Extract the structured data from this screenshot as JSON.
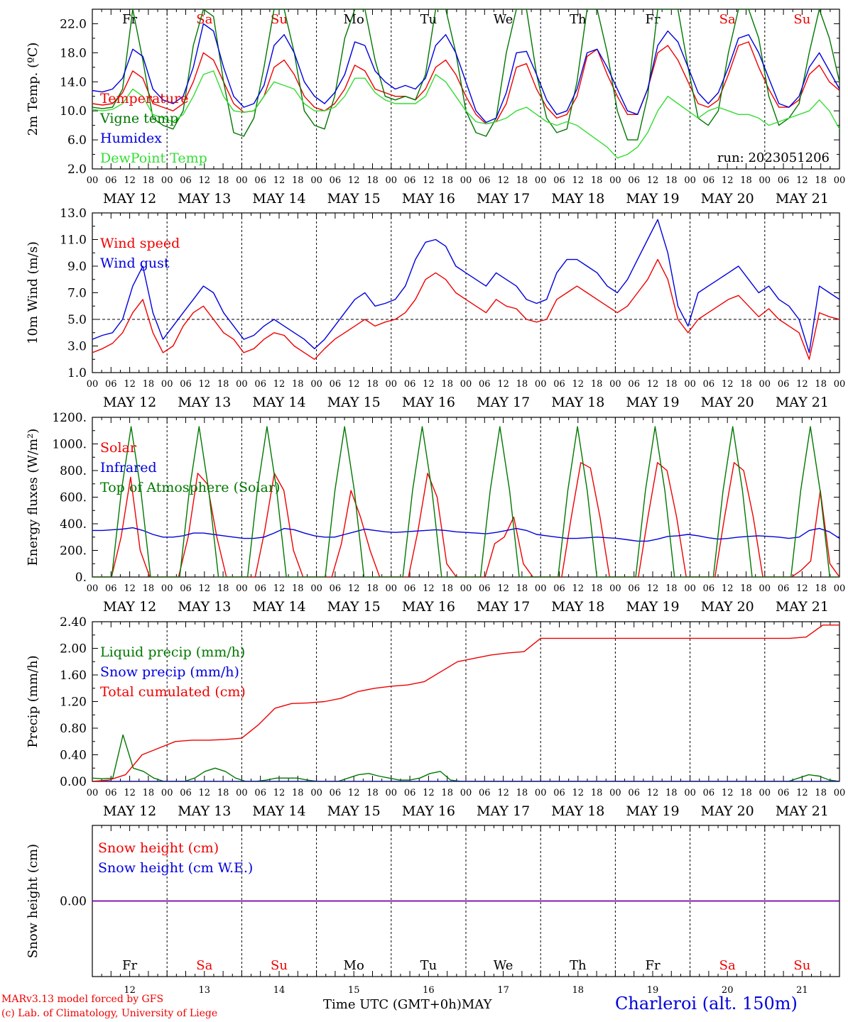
{
  "colors": {
    "red": "#ee0000",
    "green": "#007700",
    "blue": "#0000dd",
    "lightgreen": "#33dd33",
    "purple": "#7700aa",
    "weekend": "#ee0000"
  },
  "day_names": [
    "Fr",
    "Sa",
    "Su",
    "Mo",
    "Tu",
    "We",
    "Th",
    "Fr",
    "Sa",
    "Su"
  ],
  "day_weekend": [
    false,
    true,
    true,
    false,
    false,
    false,
    false,
    false,
    true,
    true
  ],
  "date_labels": [
    "MAY 12",
    "MAY 13",
    "MAY 14",
    "MAY 15",
    "MAY 16",
    "MAY 17",
    "MAY 18",
    "MAY 19",
    "MAY 20",
    "MAY 21"
  ],
  "day_numbers": [
    "12",
    "13",
    "14",
    "15",
    "16",
    "17",
    "18",
    "19",
    "20",
    "21"
  ],
  "hour_ticks": [
    "00",
    "06",
    "12",
    "18"
  ],
  "hour_end": "00",
  "x_axis_title": "Time UTC (GMT+0h)",
  "x_axis_month": "MAY",
  "credits": [
    "MARv3.13 model forced by GFS",
    "(c) Lab. of Climatology, University of Liege"
  ],
  "station": "Charleroi (alt. 150m)",
  "chart_data": [
    {
      "type": "line",
      "ylabel": "2m Temp. (ºC)",
      "ylim": [
        2.0,
        24.0
      ],
      "yticks": [
        "22.0",
        "18.0",
        "14.0",
        "10.0",
        "6.0",
        "2.0"
      ],
      "ytick_values": [
        22,
        18,
        14,
        10,
        6,
        2
      ],
      "annotation": "run: 2023051206",
      "show_day_names": true,
      "series": [
        {
          "name": "Temperature",
          "color": "red",
          "values": [
            11,
            10.8,
            11,
            12.5,
            15.5,
            14.5,
            11,
            10.5,
            10,
            11,
            14,
            18,
            17,
            14,
            11,
            9.8,
            10,
            12,
            16,
            17,
            15,
            12,
            10.5,
            10,
            11,
            13,
            16.3,
            15.5,
            13,
            12.5,
            12,
            12,
            11.5,
            13,
            16,
            17,
            15,
            12,
            9.5,
            8.2,
            8.5,
            11,
            16,
            16.5,
            13,
            10.5,
            9,
            9.5,
            12,
            17.5,
            18.5,
            15,
            12,
            9.5,
            9.5,
            13,
            18,
            19,
            17,
            14,
            11,
            10.5,
            11.5,
            15,
            19,
            19.5,
            16,
            13,
            10.5,
            10.5,
            11.5,
            15,
            16.3,
            14,
            12.8
          ]
        },
        {
          "name": "Vigne temp",
          "color": "green",
          "values": [
            10.5,
            10.3,
            10.5,
            13,
            24,
            17,
            9,
            8,
            7.5,
            10,
            19,
            24,
            23,
            14,
            7,
            6.5,
            9,
            16,
            24,
            24,
            18,
            10,
            8,
            7.5,
            12,
            20,
            24,
            24,
            17,
            12,
            11.5,
            12,
            11.5,
            15,
            24,
            24,
            18,
            10,
            7,
            6.5,
            9,
            18,
            24,
            24,
            15,
            9,
            7,
            7.5,
            14,
            24,
            24,
            18,
            10,
            6,
            6,
            12,
            24,
            24,
            24,
            16,
            9,
            8,
            10,
            18,
            24,
            24,
            20,
            12,
            8,
            9,
            11,
            18,
            24,
            20,
            14
          ]
        },
        {
          "name": "Humidex",
          "color": "blue",
          "values": [
            12.8,
            12.6,
            13,
            14.5,
            18.5,
            17.5,
            13,
            11.5,
            11,
            12,
            16,
            22,
            21,
            16,
            12,
            10.5,
            11,
            13.5,
            19,
            20.5,
            18,
            14,
            12,
            11,
            12.5,
            15,
            19.5,
            19,
            15.5,
            14,
            13,
            13.5,
            13,
            14.5,
            19,
            20.5,
            18,
            14,
            10,
            8.4,
            9,
            12.5,
            18,
            18.2,
            15,
            11.5,
            9.5,
            10,
            13,
            18,
            18.5,
            16,
            13,
            10,
            9.5,
            13,
            19,
            21,
            19.5,
            16,
            12.5,
            11,
            12.5,
            16,
            20,
            20.5,
            18,
            14.5,
            11,
            10.5,
            12,
            16,
            18,
            15.5,
            13
          ]
        },
        {
          "name": "DewPoint Temp",
          "color": "lightgreen",
          "values": [
            10.2,
            10,
            10.2,
            11,
            13,
            12,
            9.5,
            9,
            8.5,
            9.5,
            12,
            15,
            15.5,
            12,
            10,
            9.8,
            10,
            12,
            14,
            13.5,
            13,
            11,
            10,
            10,
            10.5,
            12,
            14.5,
            14.5,
            12.5,
            11.5,
            11,
            11,
            11,
            12,
            15,
            14,
            12,
            10,
            8.5,
            8.2,
            8.5,
            9,
            10,
            10.5,
            9.5,
            8.5,
            8,
            8.5,
            8,
            7,
            6,
            5,
            3.5,
            4,
            5,
            7,
            10,
            12,
            11,
            10,
            9,
            10,
            10.5,
            10,
            9.5,
            9.5,
            9,
            8,
            8.5,
            9,
            9.5,
            10,
            11.5,
            10,
            7.5
          ]
        }
      ]
    },
    {
      "type": "line",
      "ylabel": "10m Wind (m/s)",
      "ylim": [
        1.0,
        13.0
      ],
      "yticks": [
        "13.0",
        "11.0",
        "9.0",
        "7.0",
        "5.0",
        "3.0",
        "1.0"
      ],
      "ytick_values": [
        13,
        11,
        9,
        7,
        5,
        3,
        1
      ],
      "reference_line": 5.0,
      "show_day_names": false,
      "series": [
        {
          "name": "Wind speed",
          "color": "red",
          "values": [
            2.5,
            2.8,
            3.2,
            4,
            5.5,
            6.5,
            4,
            2.5,
            3,
            4.5,
            5.5,
            6,
            5,
            4,
            3.5,
            2.5,
            2.8,
            3.5,
            4,
            3.8,
            3,
            2.5,
            2,
            2.8,
            3.5,
            4,
            4.5,
            5,
            4.5,
            4.8,
            5,
            5.5,
            6.5,
            8,
            8.5,
            8,
            7,
            6.5,
            6,
            5.5,
            6.5,
            6,
            5.8,
            5,
            4.8,
            5,
            6.5,
            7,
            7.5,
            7,
            6.5,
            6,
            5.5,
            6,
            7,
            8,
            9.5,
            8,
            5,
            4,
            5,
            5.5,
            6,
            6.5,
            6.8,
            6,
            5.2,
            5.8,
            5,
            4.5,
            4,
            2,
            5.5,
            5.2,
            5
          ]
        },
        {
          "name": "Wind gust",
          "color": "blue",
          "values": [
            3.5,
            3.8,
            4,
            5,
            7.5,
            9,
            5.5,
            3.5,
            4.5,
            5.5,
            6.5,
            7.5,
            7,
            5.5,
            4.5,
            3.5,
            3.8,
            4.5,
            5,
            4.5,
            4,
            3.5,
            2.8,
            3.5,
            4.5,
            5.5,
            6.5,
            7,
            6,
            6.2,
            6.5,
            7.5,
            9.5,
            10.8,
            11,
            10.5,
            9,
            8.5,
            8,
            7.5,
            8.5,
            8,
            7.5,
            6.5,
            6.2,
            6.5,
            8.5,
            9.5,
            9.5,
            9,
            8.5,
            7.5,
            7,
            8,
            9.5,
            11,
            12.5,
            10,
            6,
            4.5,
            7,
            7.5,
            8,
            8.5,
            9,
            8,
            7,
            7.5,
            6.5,
            6,
            5,
            2.5,
            7.5,
            7,
            6.5
          ]
        }
      ]
    },
    {
      "type": "line",
      "ylabel": "Energy fluxes (W/m²)",
      "ylim": [
        0,
        1200
      ],
      "yticks": [
        "1200.",
        "1000.",
        "800.",
        "600.",
        "400.",
        "200.",
        "0."
      ],
      "ytick_values": [
        1200,
        1000,
        800,
        600,
        400,
        200,
        0
      ],
      "show_day_names": false,
      "series": [
        {
          "name": "Solar",
          "color": "red",
          "values": [
            0,
            0,
            0,
            300,
            750,
            200,
            0,
            0,
            0,
            0,
            300,
            780,
            700,
            300,
            0,
            0,
            0,
            0,
            350,
            780,
            650,
            200,
            0,
            0,
            0,
            0,
            250,
            650,
            450,
            200,
            0,
            0,
            0,
            0,
            350,
            780,
            600,
            100,
            0,
            0,
            0,
            0,
            250,
            300,
            450,
            100,
            0,
            0,
            0,
            0,
            450,
            860,
            820,
            450,
            0,
            0,
            0,
            0,
            450,
            860,
            800,
            450,
            0,
            0,
            0,
            0,
            450,
            860,
            800,
            450,
            0,
            0,
            0,
            0,
            50,
            120,
            650,
            100,
            0
          ]
        },
        {
          "name": "Infrared",
          "color": "blue",
          "values": [
            350,
            350,
            355,
            360,
            370,
            350,
            320,
            300,
            300,
            310,
            330,
            330,
            320,
            310,
            300,
            290,
            290,
            300,
            330,
            365,
            355,
            330,
            310,
            300,
            300,
            320,
            340,
            360,
            350,
            340,
            335,
            340,
            345,
            350,
            355,
            350,
            340,
            335,
            330,
            325,
            335,
            350,
            365,
            350,
            320,
            310,
            300,
            290,
            290,
            295,
            300,
            295,
            290,
            280,
            270,
            270,
            285,
            305,
            310,
            320,
            310,
            295,
            285,
            290,
            300,
            305,
            310,
            305,
            300,
            290,
            300,
            350,
            365,
            340,
            290
          ]
        },
        {
          "name": "Top of Atmosphere (Solar)",
          "color": "green",
          "values": [
            0,
            0,
            0,
            650,
            1130,
            650,
            0,
            0,
            0,
            0,
            650,
            1130,
            650,
            0,
            0,
            0,
            0,
            650,
            1130,
            650,
            0,
            0,
            0,
            0,
            0,
            650,
            1130,
            650,
            0,
            0,
            0,
            0,
            0,
            650,
            1130,
            650,
            0,
            0,
            0,
            0,
            0,
            650,
            1130,
            650,
            0,
            0,
            0,
            0,
            0,
            650,
            1130,
            650,
            0,
            0,
            0,
            0,
            0,
            650,
            1130,
            650,
            0,
            0,
            0,
            0,
            0,
            650,
            1130,
            650,
            0,
            0,
            0,
            0,
            0,
            650,
            1130,
            650,
            0,
            0
          ]
        }
      ]
    },
    {
      "type": "line",
      "ylabel": "Precip (mm/h)",
      "ylim": [
        0,
        2.4
      ],
      "yticks": [
        "2.40",
        "2.00",
        "1.60",
        "1.20",
        "0.80",
        "0.40",
        "0.00"
      ],
      "ytick_values": [
        2.4,
        2.0,
        1.6,
        1.2,
        0.8,
        0.4,
        0.0
      ],
      "show_day_names": false,
      "series": [
        {
          "name": "Liquid precip (mm/h)",
          "color": "green",
          "values": [
            0.05,
            0.04,
            0.05,
            0.7,
            0.2,
            0.15,
            0.05,
            0,
            0,
            0,
            0.05,
            0.15,
            0.2,
            0.15,
            0.05,
            0,
            0,
            0.02,
            0.05,
            0.05,
            0.05,
            0.02,
            0,
            0,
            0,
            0.05,
            0.1,
            0.12,
            0.08,
            0.05,
            0.02,
            0.02,
            0.05,
            0.12,
            0.15,
            0.02,
            0,
            0,
            0,
            0,
            0,
            0,
            0,
            0,
            0,
            0,
            0,
            0,
            0,
            0,
            0,
            0,
            0,
            0,
            0,
            0,
            0,
            0,
            0,
            0,
            0,
            0,
            0,
            0,
            0,
            0,
            0,
            0,
            0,
            0.05,
            0.1,
            0.08,
            0.02,
            0
          ]
        },
        {
          "name": "Snow precip (mm/h)",
          "color": "blue",
          "values": [
            0,
            0,
            0,
            0,
            0,
            0,
            0,
            0,
            0,
            0,
            0,
            0,
            0,
            0,
            0,
            0,
            0,
            0,
            0,
            0,
            0,
            0,
            0,
            0,
            0,
            0,
            0,
            0,
            0,
            0,
            0,
            0,
            0,
            0,
            0,
            0,
            0,
            0,
            0,
            0,
            0,
            0,
            0,
            0,
            0,
            0,
            0,
            0,
            0,
            0,
            0,
            0,
            0,
            0,
            0,
            0,
            0,
            0,
            0,
            0,
            0,
            0,
            0,
            0,
            0,
            0,
            0,
            0,
            0,
            0,
            0,
            0,
            0,
            0,
            0
          ]
        },
        {
          "name": "Total cumulated (cm)",
          "color": "red",
          "values": [
            0,
            0.02,
            0.1,
            0.4,
            0.5,
            0.6,
            0.62,
            0.62,
            0.63,
            0.65,
            0.85,
            1.1,
            1.17,
            1.18,
            1.2,
            1.25,
            1.35,
            1.4,
            1.43,
            1.45,
            1.5,
            1.65,
            1.8,
            1.85,
            1.9,
            1.93,
            1.95,
            2.15,
            2.15,
            2.15,
            2.15,
            2.15,
            2.15,
            2.15,
            2.15,
            2.15,
            2.15,
            2.15,
            2.15,
            2.15,
            2.15,
            2.15,
            2.15,
            2.17,
            2.35,
            2.35
          ]
        }
      ]
    },
    {
      "type": "line",
      "ylabel": "Snow height (cm)",
      "ylim": [
        -1,
        1
      ],
      "yticks": [
        "0.00"
      ],
      "ytick_values": [
        0
      ],
      "show_day_names": true,
      "series": [
        {
          "name": "Snow height (cm)",
          "color": "red",
          "values": [
            0,
            0
          ]
        },
        {
          "name": "Snow height (cm W.E.)",
          "color": "blue",
          "values": [
            0,
            0
          ]
        }
      ]
    }
  ]
}
